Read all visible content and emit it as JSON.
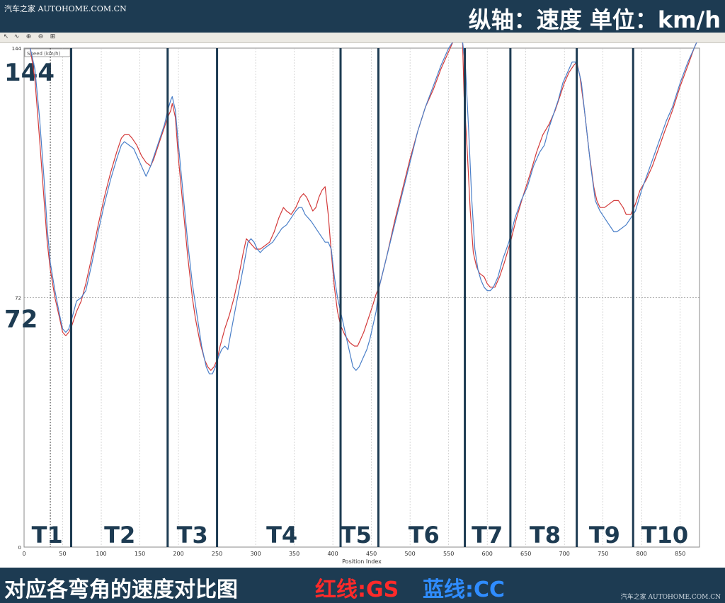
{
  "header": {
    "watermark": "汽车之家  AUTOHOME.COM.CN",
    "axis_note": "纵轴：速度  单位：km/h"
  },
  "toolbar": {
    "icons": [
      "pointer-icon",
      "curve-icon",
      "zoom-in-icon",
      "zoom-out-icon",
      "fit-icon"
    ]
  },
  "footer": {
    "caption": "对应各弯角的速度对比图",
    "legend_red": "红线:GS",
    "legend_blue": "蓝线:CC",
    "watermark": "汽车之家  AUTOHOME.COM.CN"
  },
  "colors": {
    "red_series": "#d33a3a",
    "blue_series": "#4a7fc8",
    "marker": "#1d3b52",
    "grid": "#bdbdbd"
  },
  "chart_data": {
    "type": "line",
    "title": "",
    "legend_box": "Speed (km/h)",
    "xlabel": "Position Index",
    "ylabel": "",
    "xlim": [
      0,
      875
    ],
    "ylim": [
      0,
      144
    ],
    "x_ticks": [
      0,
      50,
      100,
      150,
      200,
      250,
      300,
      350,
      400,
      450,
      500,
      550,
      600,
      650,
      700,
      750,
      800,
      850
    ],
    "y_ticks": [
      0,
      72,
      144
    ],
    "big_y_labels": [
      {
        "value": 144,
        "text": "144"
      },
      {
        "value": 72,
        "text": "72"
      }
    ],
    "grid": true,
    "cursor_x": 34,
    "turn_boundaries": [
      61,
      186,
      250,
      410,
      459,
      571,
      630,
      716,
      789
    ],
    "turn_labels": [
      {
        "text": "T1",
        "x": 30
      },
      {
        "text": "T2",
        "x": 124
      },
      {
        "text": "T3",
        "x": 218
      },
      {
        "text": "T4",
        "x": 334
      },
      {
        "text": "T5",
        "x": 430
      },
      {
        "text": "T6",
        "x": 518
      },
      {
        "text": "T7",
        "x": 600
      },
      {
        "text": "T8",
        "x": 675
      },
      {
        "text": "T9",
        "x": 752
      },
      {
        "text": "T10",
        "x": 830
      }
    ],
    "series": [
      {
        "name": "GS",
        "color_key": "red",
        "points": [
          [
            8,
            144
          ],
          [
            14,
            135
          ],
          [
            20,
            118
          ],
          [
            26,
            100
          ],
          [
            30,
            88
          ],
          [
            34,
            80
          ],
          [
            40,
            72
          ],
          [
            46,
            66
          ],
          [
            50,
            62
          ],
          [
            54,
            61
          ],
          [
            58,
            62
          ],
          [
            62,
            64
          ],
          [
            68,
            68
          ],
          [
            74,
            71
          ],
          [
            80,
            76
          ],
          [
            88,
            84
          ],
          [
            96,
            93
          ],
          [
            104,
            101
          ],
          [
            112,
            108
          ],
          [
            120,
            114
          ],
          [
            126,
            118
          ],
          [
            130,
            119
          ],
          [
            136,
            119
          ],
          [
            140,
            118
          ],
          [
            146,
            116
          ],
          [
            152,
            113
          ],
          [
            158,
            111
          ],
          [
            164,
            110
          ],
          [
            168,
            112
          ],
          [
            174,
            116
          ],
          [
            180,
            120
          ],
          [
            186,
            124
          ],
          [
            190,
            126
          ],
          [
            192,
            128
          ],
          [
            196,
            124
          ],
          [
            200,
            112
          ],
          [
            206,
            98
          ],
          [
            212,
            84
          ],
          [
            218,
            72
          ],
          [
            222,
            66
          ],
          [
            228,
            59
          ],
          [
            234,
            54
          ],
          [
            238,
            52
          ],
          [
            242,
            51
          ],
          [
            246,
            52
          ],
          [
            250,
            54
          ],
          [
            254,
            58
          ],
          [
            260,
            63
          ],
          [
            266,
            67
          ],
          [
            272,
            72
          ],
          [
            278,
            78
          ],
          [
            284,
            85
          ],
          [
            288,
            89
          ],
          [
            292,
            88
          ],
          [
            296,
            87
          ],
          [
            300,
            86
          ],
          [
            306,
            86
          ],
          [
            312,
            87
          ],
          [
            318,
            88
          ],
          [
            324,
            91
          ],
          [
            330,
            95
          ],
          [
            336,
            98
          ],
          [
            340,
            97
          ],
          [
            346,
            96
          ],
          [
            352,
            98
          ],
          [
            358,
            101
          ],
          [
            362,
            102
          ],
          [
            366,
            101
          ],
          [
            370,
            99
          ],
          [
            374,
            97
          ],
          [
            378,
            98
          ],
          [
            382,
            101
          ],
          [
            386,
            103
          ],
          [
            390,
            104
          ],
          [
            394,
            96
          ],
          [
            398,
            85
          ],
          [
            402,
            75
          ],
          [
            406,
            68
          ],
          [
            410,
            64
          ],
          [
            416,
            61
          ],
          [
            422,
            59
          ],
          [
            428,
            58
          ],
          [
            432,
            58
          ],
          [
            436,
            60
          ],
          [
            440,
            62
          ],
          [
            446,
            66
          ],
          [
            452,
            70
          ],
          [
            456,
            73
          ],
          [
            460,
            75
          ],
          [
            470,
            84
          ],
          [
            480,
            94
          ],
          [
            490,
            103
          ],
          [
            500,
            112
          ],
          [
            510,
            120
          ],
          [
            520,
            127
          ],
          [
            530,
            132
          ],
          [
            540,
            138
          ],
          [
            550,
            143
          ],
          [
            556,
            146
          ],
          [
            560,
            148
          ],
          [
            564,
            148
          ],
          [
            568,
            146
          ],
          [
            570,
            130
          ],
          [
            574,
            115
          ],
          [
            578,
            97
          ],
          [
            582,
            85
          ],
          [
            586,
            81
          ],
          [
            590,
            79
          ],
          [
            596,
            78
          ],
          [
            600,
            76
          ],
          [
            604,
            75
          ],
          [
            610,
            75
          ],
          [
            616,
            78
          ],
          [
            622,
            82
          ],
          [
            630,
            88
          ],
          [
            638,
            95
          ],
          [
            646,
            101
          ],
          [
            656,
            108
          ],
          [
            664,
            114
          ],
          [
            672,
            119
          ],
          [
            680,
            122
          ],
          [
            688,
            126
          ],
          [
            694,
            130
          ],
          [
            700,
            134
          ],
          [
            706,
            137
          ],
          [
            712,
            139
          ],
          [
            716,
            140
          ],
          [
            720,
            136
          ],
          [
            726,
            126
          ],
          [
            732,
            114
          ],
          [
            738,
            104
          ],
          [
            742,
            100
          ],
          [
            746,
            98
          ],
          [
            752,
            98
          ],
          [
            758,
            99
          ],
          [
            764,
            100
          ],
          [
            770,
            100
          ],
          [
            776,
            98
          ],
          [
            780,
            96
          ],
          [
            786,
            96
          ],
          [
            792,
            99
          ],
          [
            798,
            103
          ],
          [
            806,
            106
          ],
          [
            814,
            110
          ],
          [
            822,
            115
          ],
          [
            830,
            120
          ],
          [
            840,
            126
          ],
          [
            850,
            133
          ],
          [
            860,
            139
          ],
          [
            868,
            144
          ],
          [
            872,
            146
          ]
        ]
      },
      {
        "name": "CC",
        "color_key": "blue",
        "points": [
          [
            8,
            144
          ],
          [
            14,
            138
          ],
          [
            20,
            124
          ],
          [
            26,
            106
          ],
          [
            30,
            92
          ],
          [
            34,
            82
          ],
          [
            40,
            74
          ],
          [
            46,
            67
          ],
          [
            50,
            63
          ],
          [
            54,
            62
          ],
          [
            58,
            63
          ],
          [
            62,
            66
          ],
          [
            68,
            71
          ],
          [
            74,
            72
          ],
          [
            80,
            74
          ],
          [
            88,
            82
          ],
          [
            96,
            91
          ],
          [
            104,
            99
          ],
          [
            112,
            106
          ],
          [
            120,
            112
          ],
          [
            126,
            116
          ],
          [
            130,
            117
          ],
          [
            136,
            116
          ],
          [
            142,
            115
          ],
          [
            148,
            112
          ],
          [
            154,
            109
          ],
          [
            158,
            107
          ],
          [
            164,
            110
          ],
          [
            170,
            114
          ],
          [
            176,
            118
          ],
          [
            182,
            122
          ],
          [
            186,
            126
          ],
          [
            190,
            129
          ],
          [
            192,
            130
          ],
          [
            196,
            126
          ],
          [
            200,
            116
          ],
          [
            206,
            102
          ],
          [
            212,
            88
          ],
          [
            218,
            76
          ],
          [
            224,
            67
          ],
          [
            230,
            58
          ],
          [
            236,
            52
          ],
          [
            240,
            50
          ],
          [
            244,
            50
          ],
          [
            248,
            52
          ],
          [
            252,
            55
          ],
          [
            256,
            57
          ],
          [
            260,
            58
          ],
          [
            264,
            57
          ],
          [
            268,
            62
          ],
          [
            274,
            69
          ],
          [
            280,
            76
          ],
          [
            286,
            83
          ],
          [
            290,
            88
          ],
          [
            294,
            89
          ],
          [
            298,
            88
          ],
          [
            302,
            86
          ],
          [
            306,
            85
          ],
          [
            310,
            86
          ],
          [
            316,
            87
          ],
          [
            322,
            88
          ],
          [
            328,
            90
          ],
          [
            334,
            92
          ],
          [
            340,
            93
          ],
          [
            346,
            95
          ],
          [
            352,
            97
          ],
          [
            356,
            98
          ],
          [
            360,
            98
          ],
          [
            364,
            96
          ],
          [
            368,
            95
          ],
          [
            372,
            94
          ],
          [
            378,
            92
          ],
          [
            384,
            90
          ],
          [
            390,
            88
          ],
          [
            394,
            88
          ],
          [
            398,
            86
          ],
          [
            402,
            78
          ],
          [
            406,
            72
          ],
          [
            410,
            68
          ],
          [
            414,
            64
          ],
          [
            418,
            60
          ],
          [
            422,
            56
          ],
          [
            426,
            52
          ],
          [
            430,
            51
          ],
          [
            434,
            52
          ],
          [
            438,
            54
          ],
          [
            444,
            57
          ],
          [
            448,
            60
          ],
          [
            452,
            64
          ],
          [
            456,
            68
          ],
          [
            460,
            75
          ],
          [
            470,
            84
          ],
          [
            480,
            93
          ],
          [
            490,
            102
          ],
          [
            500,
            111
          ],
          [
            510,
            120
          ],
          [
            520,
            127
          ],
          [
            530,
            133
          ],
          [
            540,
            139
          ],
          [
            550,
            144
          ],
          [
            556,
            146
          ],
          [
            560,
            147
          ],
          [
            564,
            148
          ],
          [
            568,
            146
          ],
          [
            572,
            138
          ],
          [
            576,
            120
          ],
          [
            580,
            100
          ],
          [
            584,
            86
          ],
          [
            588,
            80
          ],
          [
            592,
            77
          ],
          [
            596,
            75
          ],
          [
            600,
            74
          ],
          [
            604,
            74
          ],
          [
            608,
            75
          ],
          [
            614,
            78
          ],
          [
            620,
            83
          ],
          [
            628,
            88
          ],
          [
            636,
            95
          ],
          [
            644,
            100
          ],
          [
            652,
            104
          ],
          [
            660,
            110
          ],
          [
            668,
            114
          ],
          [
            674,
            116
          ],
          [
            680,
            121
          ],
          [
            686,
            125
          ],
          [
            692,
            129
          ],
          [
            698,
            134
          ],
          [
            704,
            137
          ],
          [
            710,
            140
          ],
          [
            714,
            140
          ],
          [
            718,
            138
          ],
          [
            722,
            134
          ],
          [
            728,
            122
          ],
          [
            734,
            110
          ],
          [
            740,
            100
          ],
          [
            746,
            97
          ],
          [
            752,
            95
          ],
          [
            758,
            93
          ],
          [
            764,
            91
          ],
          [
            768,
            91
          ],
          [
            774,
            92
          ],
          [
            780,
            93
          ],
          [
            786,
            95
          ],
          [
            792,
            97
          ],
          [
            800,
            103
          ],
          [
            808,
            108
          ],
          [
            816,
            113
          ],
          [
            824,
            118
          ],
          [
            832,
            123
          ],
          [
            840,
            127
          ],
          [
            850,
            134
          ],
          [
            860,
            140
          ],
          [
            868,
            144
          ],
          [
            872,
            146
          ]
        ]
      }
    ]
  }
}
